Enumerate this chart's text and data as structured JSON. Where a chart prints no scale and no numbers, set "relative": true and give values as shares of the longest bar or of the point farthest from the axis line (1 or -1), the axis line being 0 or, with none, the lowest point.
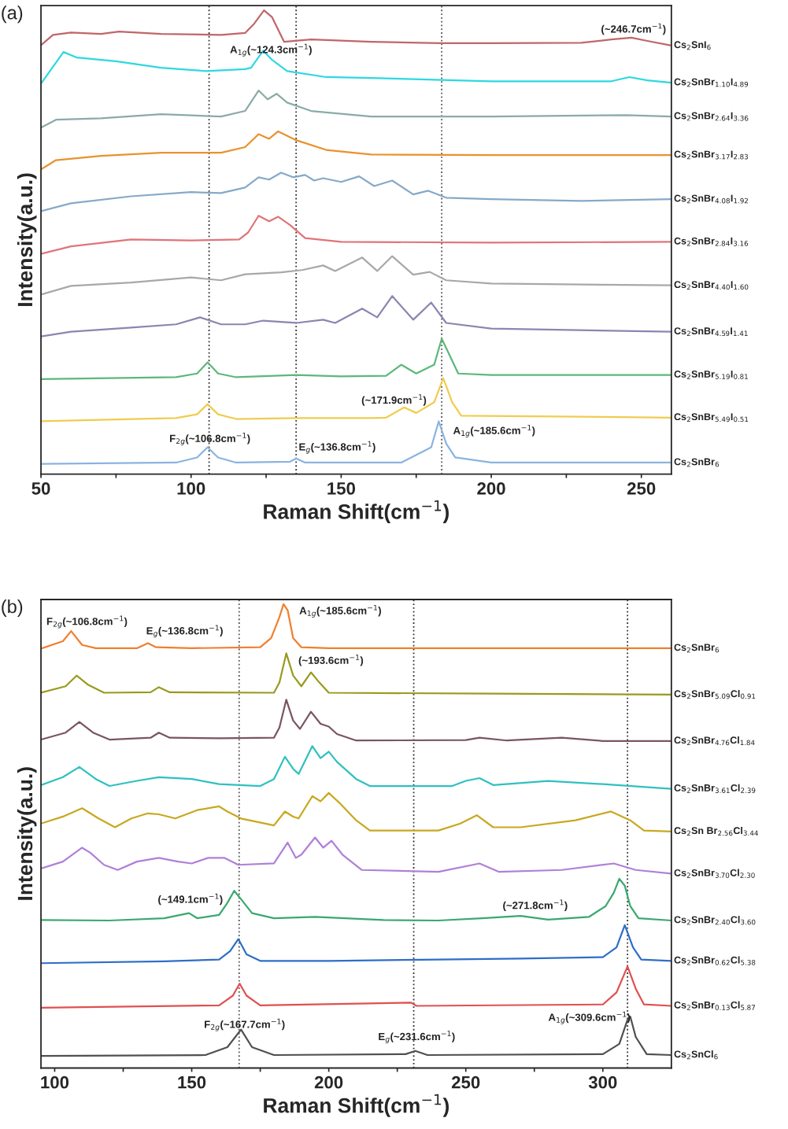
{
  "chart_data": [
    {
      "type": "line",
      "title": "(a)",
      "xlabel": "Raman Shift(cm$^{−1}$)",
      "ylabel": "Intensity(a.u.)",
      "relative": true,
      "xlim": [
        50,
        260
      ],
      "xticks": [
        50,
        {
          "value": 75,
          "label": null
        },
        100,
        {
          "value": 125,
          "label": null
        },
        150,
        {
          "value": 175,
          "label": null
        },
        200,
        {
          "value": 225,
          "label": null
        },
        250
      ],
      "ref_lines": [
        {
          "axis": "x",
          "value": 106,
          "color": "#333333",
          "line_style": "dotted"
        },
        {
          "axis": "x",
          "value": 135,
          "color": "#333333",
          "line_style": "dotted"
        },
        {
          "axis": "x",
          "value": 183.5,
          "color": "#555555",
          "line_style": "dotted"
        }
      ],
      "annotations": [
        "A$_{1g}$(~124.3cm$^{−1}$)",
        "(~246.7cm$^{−1}$)",
        "F$_{2g}$(~106.8cm$^{−1}$)",
        "E$_{g}$(~136.8cm$^{−1}$)",
        "(~171.9cm$^{−1}$)",
        "A$_{1g}$(~185.6cm$^{−1}$)"
      ],
      "series": [
        {
          "name": "Cs$_{2}$SnI$_{6}$",
          "color": "#c1666b",
          "x": [
            50,
            54,
            60,
            70,
            76,
            90,
            110,
            118,
            121,
            124.3,
            127,
            131,
            140,
            160,
            183,
            200,
            230,
            240,
            246.7,
            252,
            260
          ],
          "values": [
            0.925,
            0.947,
            0.952,
            0.949,
            0.954,
            0.949,
            0.947,
            0.951,
            0.971,
            1.0,
            0.985,
            0.932,
            0.937,
            0.932,
            0.929,
            0.929,
            0.93,
            0.937,
            0.941,
            0.934,
            0.924
          ]
        },
        {
          "name": "Cs$_{2}$SnBr$_{1.10}$I$_{4.89}$",
          "color": "#2ed8e0",
          "x": [
            50,
            57.5,
            62,
            75,
            90,
            105,
            118,
            120,
            124,
            127,
            132,
            145,
            160,
            200,
            240,
            246,
            252,
            260
          ],
          "values": [
            0.842,
            0.91,
            0.898,
            0.89,
            0.876,
            0.869,
            0.873,
            0.876,
            0.913,
            0.893,
            0.869,
            0.856,
            0.854,
            0.847,
            0.847,
            0.856,
            0.849,
            0.844
          ]
        },
        {
          "name": "Cs$_{2}$SnBr$_{2.64}$I$_{3.36}$",
          "color": "#8aaba8",
          "x": [
            50,
            55,
            70,
            90,
            110,
            118,
            122.5,
            125.5,
            128.5,
            132,
            140,
            160,
            200,
            245,
            260
          ],
          "values": [
            0.747,
            0.764,
            0.767,
            0.776,
            0.771,
            0.783,
            0.827,
            0.808,
            0.82,
            0.801,
            0.783,
            0.771,
            0.771,
            0.774,
            0.771
          ]
        },
        {
          "name": "Cs$_{2}$SnBr$_{3.17}$I$_{2.83}$",
          "color": "#e8922e",
          "x": [
            50,
            55,
            70,
            90,
            110,
            118,
            122.5,
            126,
            129,
            135,
            145,
            160,
            200,
            260
          ],
          "values": [
            0.657,
            0.677,
            0.686,
            0.693,
            0.693,
            0.705,
            0.733,
            0.723,
            0.739,
            0.72,
            0.699,
            0.689,
            0.688,
            0.688
          ]
        },
        {
          "name": "Cs$_{2}$SnBr$_{4.08}$I$_{1.92}$",
          "color": "#86a9c8",
          "x": [
            50,
            60,
            80,
            100,
            110,
            118,
            122.5,
            126,
            130,
            134,
            138,
            141,
            144,
            150,
            156,
            161,
            167,
            174,
            179,
            185,
            200,
            230,
            260
          ],
          "values": [
            0.567,
            0.584,
            0.599,
            0.608,
            0.606,
            0.618,
            0.64,
            0.635,
            0.65,
            0.64,
            0.645,
            0.633,
            0.638,
            0.63,
            0.642,
            0.621,
            0.633,
            0.603,
            0.611,
            0.596,
            0.593,
            0.589,
            0.593
          ]
        },
        {
          "name": "Cs$_{2}$SnBr$_{2.84}$I$_{3.16}$",
          "color": "#e0747a",
          "x": [
            50,
            60,
            80,
            100,
            116,
            119,
            122.5,
            126,
            129,
            133,
            138,
            150,
            200,
            260
          ],
          "values": [
            0.475,
            0.491,
            0.506,
            0.504,
            0.506,
            0.521,
            0.557,
            0.545,
            0.555,
            0.537,
            0.509,
            0.501,
            0.499,
            0.501
          ]
        },
        {
          "name": "Cs$_{2}$SnBr$_{4.40}$I$_{1.60}$",
          "color": "#a8a8a8",
          "x": [
            50,
            60,
            80,
            100,
            110,
            118,
            130,
            137,
            144,
            148,
            157,
            162,
            167,
            174,
            179.5,
            185,
            200,
            260
          ],
          "values": [
            0.387,
            0.406,
            0.413,
            0.424,
            0.418,
            0.431,
            0.435,
            0.44,
            0.45,
            0.438,
            0.467,
            0.438,
            0.47,
            0.43,
            0.436,
            0.418,
            0.411,
            0.407
          ]
        },
        {
          "name": "Cs$_{2}$SnBr$_{4.59}$I$_{1.41}$",
          "color": "#8a86b0",
          "x": [
            50,
            60,
            80,
            95,
            103,
            110,
            118,
            124,
            135,
            144,
            148,
            157,
            162,
            167,
            174,
            180,
            185,
            200,
            260
          ],
          "values": [
            0.297,
            0.307,
            0.316,
            0.323,
            0.338,
            0.323,
            0.323,
            0.331,
            0.326,
            0.333,
            0.326,
            0.357,
            0.338,
            0.384,
            0.333,
            0.37,
            0.326,
            0.314,
            0.307
          ]
        },
        {
          "name": "Cs$_{2}$SnBr$_{5.19}$I$_{0.81}$",
          "color": "#5cb87a",
          "x": [
            50,
            95,
            102,
            105.5,
            109,
            115,
            135,
            150,
            165,
            170,
            175,
            181,
            183.5,
            186,
            189,
            200,
            260
          ],
          "values": [
            0.205,
            0.209,
            0.217,
            0.241,
            0.217,
            0.209,
            0.214,
            0.211,
            0.212,
            0.236,
            0.217,
            0.236,
            0.292,
            0.258,
            0.217,
            0.214,
            0.214
          ]
        },
        {
          "name": "Cs$_{2}$SnBr$_{5.49}$I$_{0.51}$",
          "color": "#f0cc50",
          "x": [
            50,
            95,
            102,
            105.5,
            109,
            115,
            135,
            160,
            165,
            171,
            175,
            181,
            184,
            187,
            190,
            260
          ],
          "values": [
            0.114,
            0.121,
            0.129,
            0.151,
            0.129,
            0.119,
            0.121,
            0.121,
            0.122,
            0.144,
            0.132,
            0.155,
            0.207,
            0.155,
            0.126,
            0.122
          ]
        },
        {
          "name": "Cs$_{2}$SnBr$_{6}$",
          "color": "#8ab4e0",
          "x": [
            50,
            95,
            102,
            105.5,
            109,
            115,
            133,
            135,
            138,
            170,
            180,
            182.5,
            185,
            188,
            200,
            260
          ],
          "values": [
            0.022,
            0.025,
            0.036,
            0.058,
            0.036,
            0.025,
            0.027,
            0.034,
            0.025,
            0.025,
            0.058,
            0.114,
            0.066,
            0.036,
            0.025,
            0.025
          ]
        }
      ]
    },
    {
      "type": "line",
      "title": "(b)",
      "xlabel": "Raman Shift(cm$^{−1}$)",
      "ylabel": "Intensity(a.u.)",
      "relative": true,
      "xlim": [
        95,
        325
      ],
      "xticks": [
        100,
        {
          "value": 125,
          "label": null
        },
        150,
        {
          "value": 175,
          "label": null
        },
        200,
        {
          "value": 225,
          "label": null
        },
        250,
        {
          "value": 275,
          "label": null
        },
        300
      ],
      "ref_lines": [
        {
          "axis": "x",
          "value": 167.3,
          "color": "#555555",
          "line_style": "dotted"
        },
        {
          "axis": "x",
          "value": 231,
          "color": "#333333",
          "line_style": "dotted"
        },
        {
          "axis": "x",
          "value": 309,
          "color": "#333333",
          "line_style": "dotted"
        }
      ],
      "annotations": [
        "F$_{2g}$(~106.8cm$^{−1}$)",
        "E$_{g}$(~136.8cm$^{−1}$)",
        "A$_{1g}$(~185.6cm$^{−1}$)",
        "(~193.6cm$^{−1}$)",
        "(~149.1cm$^{−1}$)",
        "F$_{2g}$(~167.7cm$^{−1}$)",
        "E$_{g}$(~231.6cm$^{−1}$)",
        "(~271.8cm$^{−1}$)",
        "A$_{1g}$(~309.6cm$^{−1}$)"
      ],
      "series": [
        {
          "name": "Cs$_{2}$SnBr$_{6}$",
          "color": "#f07f30",
          "x": [
            95,
            103,
            106,
            110,
            115,
            130,
            134,
            137,
            150,
            175,
            179,
            182,
            183.5,
            185,
            187,
            190,
            200,
            325
          ],
          "values": [
            0.904,
            0.92,
            0.942,
            0.912,
            0.905,
            0.905,
            0.916,
            0.907,
            0.905,
            0.907,
            0.927,
            0.972,
            1.0,
            0.987,
            0.927,
            0.907,
            0.905,
            0.905
          ]
        },
        {
          "name": "Cs$_{2}$SnBr$_{5.09}$Cl$_{0.91}$",
          "color": "#9a9a20",
          "x": [
            95,
            104,
            108,
            112,
            118,
            135,
            138,
            142,
            180,
            182,
            184.5,
            187,
            190,
            193.5,
            196,
            200,
            260,
            325
          ],
          "values": [
            0.809,
            0.823,
            0.846,
            0.827,
            0.809,
            0.81,
            0.821,
            0.81,
            0.809,
            0.831,
            0.894,
            0.846,
            0.823,
            0.853,
            0.835,
            0.809,
            0.807,
            0.805
          ]
        },
        {
          "name": "Cs$_{2}$SnBr$_{4.76}$Cl$_{1.84}$",
          "color": "#7a5560",
          "x": [
            95,
            104,
            109,
            114,
            120,
            135,
            138,
            142,
            160,
            180,
            182,
            184.5,
            187,
            189.5,
            193.5,
            197,
            200,
            203,
            210,
            250,
            255,
            265,
            285,
            300,
            325
          ],
          "values": [
            0.708,
            0.723,
            0.746,
            0.723,
            0.708,
            0.712,
            0.723,
            0.712,
            0.711,
            0.712,
            0.734,
            0.794,
            0.749,
            0.731,
            0.768,
            0.742,
            0.736,
            0.72,
            0.706,
            0.707,
            0.712,
            0.706,
            0.712,
            0.705,
            0.705
          ]
        },
        {
          "name": "Cs$_{2}$SnBr$_{3.61}$Cl$_{2.39}$",
          "color": "#30c0c0",
          "x": [
            95,
            103,
            109,
            115,
            120,
            130,
            138,
            150,
            160,
            175,
            180,
            184,
            187,
            189,
            194,
            197,
            200,
            203,
            210,
            215,
            245,
            250,
            255,
            260,
            280,
            300,
            325
          ],
          "values": [
            0.61,
            0.627,
            0.649,
            0.623,
            0.608,
            0.619,
            0.627,
            0.623,
            0.612,
            0.608,
            0.623,
            0.671,
            0.645,
            0.634,
            0.694,
            0.668,
            0.682,
            0.66,
            0.623,
            0.608,
            0.608,
            0.619,
            0.625,
            0.61,
            0.619,
            0.612,
            0.602
          ]
        },
        {
          "name": "Cs$_{2}$Sn Br$_{2.56}$Cl$_{3.44}$",
          "color": "#c8a820",
          "x": [
            95,
            103,
            110,
            116,
            122,
            128,
            134,
            138,
            144,
            152,
            160,
            163,
            168,
            180,
            184,
            187,
            189,
            194,
            197,
            200,
            204,
            210,
            215,
            240,
            248,
            254,
            260,
            270,
            290,
            303,
            310,
            315,
            325
          ],
          "values": [
            0.527,
            0.542,
            0.56,
            0.538,
            0.519,
            0.538,
            0.549,
            0.547,
            0.538,
            0.556,
            0.564,
            0.553,
            0.538,
            0.523,
            0.553,
            0.542,
            0.538,
            0.586,
            0.575,
            0.593,
            0.571,
            0.534,
            0.512,
            0.512,
            0.527,
            0.545,
            0.519,
            0.519,
            0.534,
            0.553,
            0.534,
            0.512,
            0.51
          ]
        },
        {
          "name": "Cs$_{2}$SnBr$_{3.70}$Cl$_{2.30}$",
          "color": "#b080d8",
          "x": [
            95,
            103,
            110,
            113,
            118,
            123,
            130,
            138,
            145,
            150,
            156,
            162,
            167,
            180,
            185,
            188,
            190,
            195,
            198,
            201,
            205,
            212,
            240,
            255,
            262,
            285,
            304,
            312,
            325
          ],
          "values": [
            0.43,
            0.445,
            0.475,
            0.464,
            0.438,
            0.427,
            0.445,
            0.453,
            0.445,
            0.441,
            0.453,
            0.453,
            0.438,
            0.441,
            0.486,
            0.453,
            0.46,
            0.497,
            0.475,
            0.49,
            0.46,
            0.427,
            0.423,
            0.441,
            0.423,
            0.427,
            0.441,
            0.427,
            0.419
          ]
        },
        {
          "name": "Cs$_{2}$SnBr$_{2.40}$Cl$_{3.60}$",
          "color": "#3aa870",
          "x": [
            95,
            120,
            140,
            149,
            152,
            160,
            163,
            165.5,
            168,
            172,
            180,
            195,
            220,
            240,
            256,
            270,
            280,
            295,
            301,
            304,
            306,
            308,
            310,
            313,
            325
          ],
          "values": [
            0.319,
            0.318,
            0.323,
            0.334,
            0.323,
            0.33,
            0.356,
            0.382,
            0.364,
            0.334,
            0.323,
            0.326,
            0.319,
            0.318,
            0.323,
            0.328,
            0.32,
            0.326,
            0.349,
            0.378,
            0.408,
            0.393,
            0.349,
            0.323,
            0.318
          ]
        },
        {
          "name": "Cs$_{2}$SnBr$_{0.62}$Cl$_{5.38}$",
          "color": "#2e6ec8",
          "x": [
            95,
            140,
            160,
            164,
            167,
            170,
            175,
            200,
            240,
            270,
            300,
            305,
            308,
            311,
            314,
            325
          ],
          "values": [
            0.226,
            0.23,
            0.234,
            0.252,
            0.278,
            0.245,
            0.231,
            0.231,
            0.234,
            0.236,
            0.239,
            0.26,
            0.308,
            0.26,
            0.234,
            0.231
          ]
        },
        {
          "name": "Cs$_{2}$SnBr$_{0.13}$Cl$_{5.87}$",
          "color": "#e05050",
          "x": [
            95,
            160,
            165,
            167.5,
            170,
            175,
            230,
            232,
            300,
            305,
            309,
            312,
            315,
            325
          ],
          "values": [
            0.13,
            0.135,
            0.156,
            0.182,
            0.156,
            0.135,
            0.141,
            0.134,
            0.137,
            0.163,
            0.219,
            0.171,
            0.137,
            0.134
          ]
        },
        {
          "name": "Cs$_{2}$SnCl$_{6}$",
          "color": "#505050",
          "x": [
            95,
            155,
            163,
            168,
            172,
            180,
            228,
            231.6,
            236,
            300,
            306,
            309,
            310,
            312,
            316,
            325
          ],
          "values": [
            0.026,
            0.028,
            0.045,
            0.083,
            0.045,
            0.028,
            0.03,
            0.037,
            0.028,
            0.03,
            0.052,
            0.104,
            0.111,
            0.067,
            0.03,
            0.028
          ]
        }
      ]
    }
  ]
}
